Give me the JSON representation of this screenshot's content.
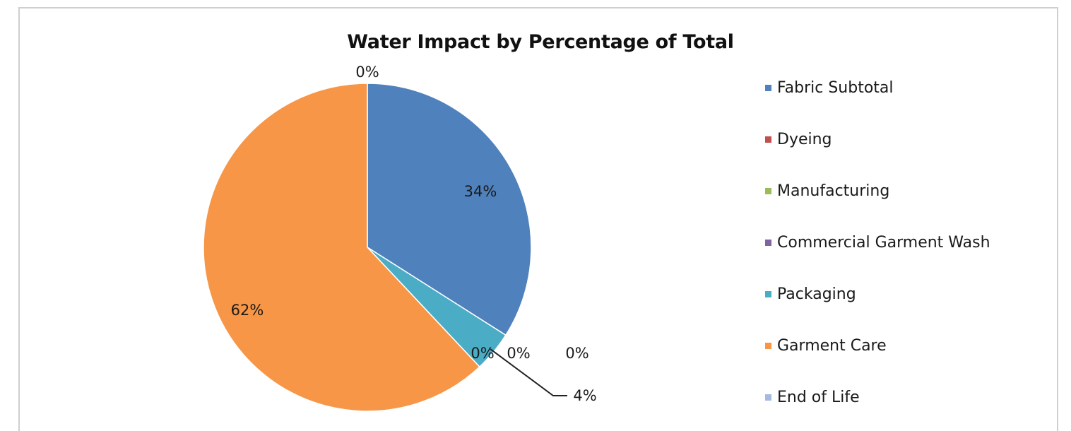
{
  "chart_data": {
    "type": "pie",
    "title": "Water Impact by Percentage of Total",
    "slices": [
      {
        "name": "Fabric Subtotal",
        "value": 34,
        "label": "34%",
        "color": "#4F81BD"
      },
      {
        "name": "Dyeing",
        "value": 0,
        "label": "0%",
        "color": "#C0504D"
      },
      {
        "name": "Manufacturing",
        "value": 0,
        "label": "0%",
        "color": "#9BBB59"
      },
      {
        "name": "Commercial Garment Wash",
        "value": 0,
        "label": "0%",
        "color": "#8064A2"
      },
      {
        "name": "Packaging",
        "value": 4,
        "label": "4%",
        "color": "#4BACC6"
      },
      {
        "name": "Garment Care",
        "value": 62,
        "label": "62%",
        "color": "#F79646"
      },
      {
        "name": "End of Life",
        "value": 0,
        "label": "0%",
        "color": "#A6B9DE"
      }
    ],
    "legend_position": "right"
  }
}
